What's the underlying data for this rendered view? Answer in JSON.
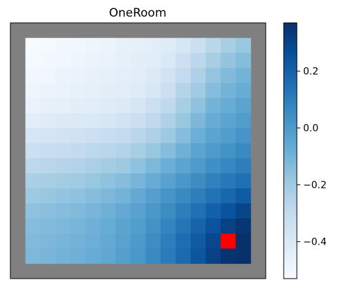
{
  "chart_data": {
    "type": "heatmap",
    "title": "OneRoom",
    "xlabel": "",
    "ylabel": "",
    "grid": false,
    "colormap": "Blues",
    "colorbar": {
      "vmin": -0.53,
      "vmax": 0.37,
      "ticks": [
        0.2,
        0.0,
        -0.2,
        -0.4
      ],
      "tick_labels": [
        "0.2",
        "0.0",
        "−0.2",
        "−0.4"
      ]
    },
    "wall_color": "#808080",
    "goal_color": "#ff0000",
    "grid_size": 15,
    "wall_thickness": 1,
    "goal": {
      "row": 13,
      "col": 13
    },
    "values": [
      [
        -0.53,
        -0.52,
        -0.51,
        -0.5,
        -0.49,
        -0.48,
        -0.46,
        -0.45,
        -0.44,
        -0.42,
        -0.38,
        -0.33,
        -0.27,
        -0.22,
        -0.18
      ],
      [
        -0.52,
        -0.51,
        -0.5,
        -0.49,
        -0.48,
        -0.47,
        -0.45,
        -0.44,
        -0.43,
        -0.4,
        -0.34,
        -0.28,
        -0.22,
        -0.17,
        -0.14
      ],
      [
        -0.51,
        -0.5,
        -0.48,
        -0.47,
        -0.46,
        -0.45,
        -0.44,
        -0.43,
        -0.41,
        -0.36,
        -0.3,
        -0.24,
        -0.17,
        -0.13,
        -0.1
      ],
      [
        -0.49,
        -0.48,
        -0.47,
        -0.46,
        -0.45,
        -0.44,
        -0.43,
        -0.42,
        -0.39,
        -0.33,
        -0.26,
        -0.2,
        -0.14,
        -0.1,
        -0.07
      ],
      [
        -0.47,
        -0.46,
        -0.45,
        -0.44,
        -0.43,
        -0.42,
        -0.41,
        -0.38,
        -0.34,
        -0.29,
        -0.22,
        -0.16,
        -0.1,
        -0.07,
        -0.04
      ],
      [
        -0.43,
        -0.42,
        -0.41,
        -0.41,
        -0.4,
        -0.38,
        -0.36,
        -0.33,
        -0.29,
        -0.24,
        -0.18,
        -0.12,
        -0.07,
        -0.04,
        -0.01
      ],
      [
        -0.38,
        -0.37,
        -0.36,
        -0.35,
        -0.34,
        -0.32,
        -0.3,
        -0.27,
        -0.24,
        -0.19,
        -0.14,
        -0.08,
        -0.04,
        -0.01,
        0.02
      ],
      [
        -0.33,
        -0.32,
        -0.31,
        -0.3,
        -0.28,
        -0.27,
        -0.25,
        -0.22,
        -0.18,
        -0.14,
        -0.09,
        -0.04,
        0.0,
        0.03,
        0.06
      ],
      [
        -0.28,
        -0.27,
        -0.26,
        -0.25,
        -0.23,
        -0.21,
        -0.19,
        -0.16,
        -0.12,
        -0.08,
        -0.04,
        0.0,
        0.04,
        0.07,
        0.1
      ],
      [
        -0.23,
        -0.22,
        -0.21,
        -0.2,
        -0.18,
        -0.16,
        -0.14,
        -0.11,
        -0.07,
        -0.03,
        0.01,
        0.05,
        0.09,
        0.12,
        0.15
      ],
      [
        -0.19,
        -0.18,
        -0.17,
        -0.16,
        -0.14,
        -0.12,
        -0.1,
        -0.06,
        -0.02,
        0.02,
        0.06,
        0.1,
        0.14,
        0.18,
        0.22
      ],
      [
        -0.16,
        -0.15,
        -0.14,
        -0.13,
        -0.11,
        -0.09,
        -0.06,
        -0.03,
        0.01,
        0.05,
        0.1,
        0.15,
        0.2,
        0.25,
        0.3
      ],
      [
        -0.14,
        -0.13,
        -0.12,
        -0.11,
        -0.09,
        -0.07,
        -0.04,
        -0.01,
        0.03,
        0.08,
        0.13,
        0.19,
        0.25,
        0.31,
        0.35
      ],
      [
        -0.13,
        -0.12,
        -0.11,
        -0.1,
        -0.08,
        -0.06,
        -0.03,
        0.0,
        0.05,
        0.1,
        0.16,
        0.22,
        0.29,
        0.35,
        0.37
      ],
      [
        -0.12,
        -0.11,
        -0.1,
        -0.09,
        -0.07,
        -0.05,
        -0.02,
        0.01,
        0.06,
        0.11,
        0.17,
        0.24,
        0.31,
        0.36,
        0.37
      ]
    ]
  }
}
